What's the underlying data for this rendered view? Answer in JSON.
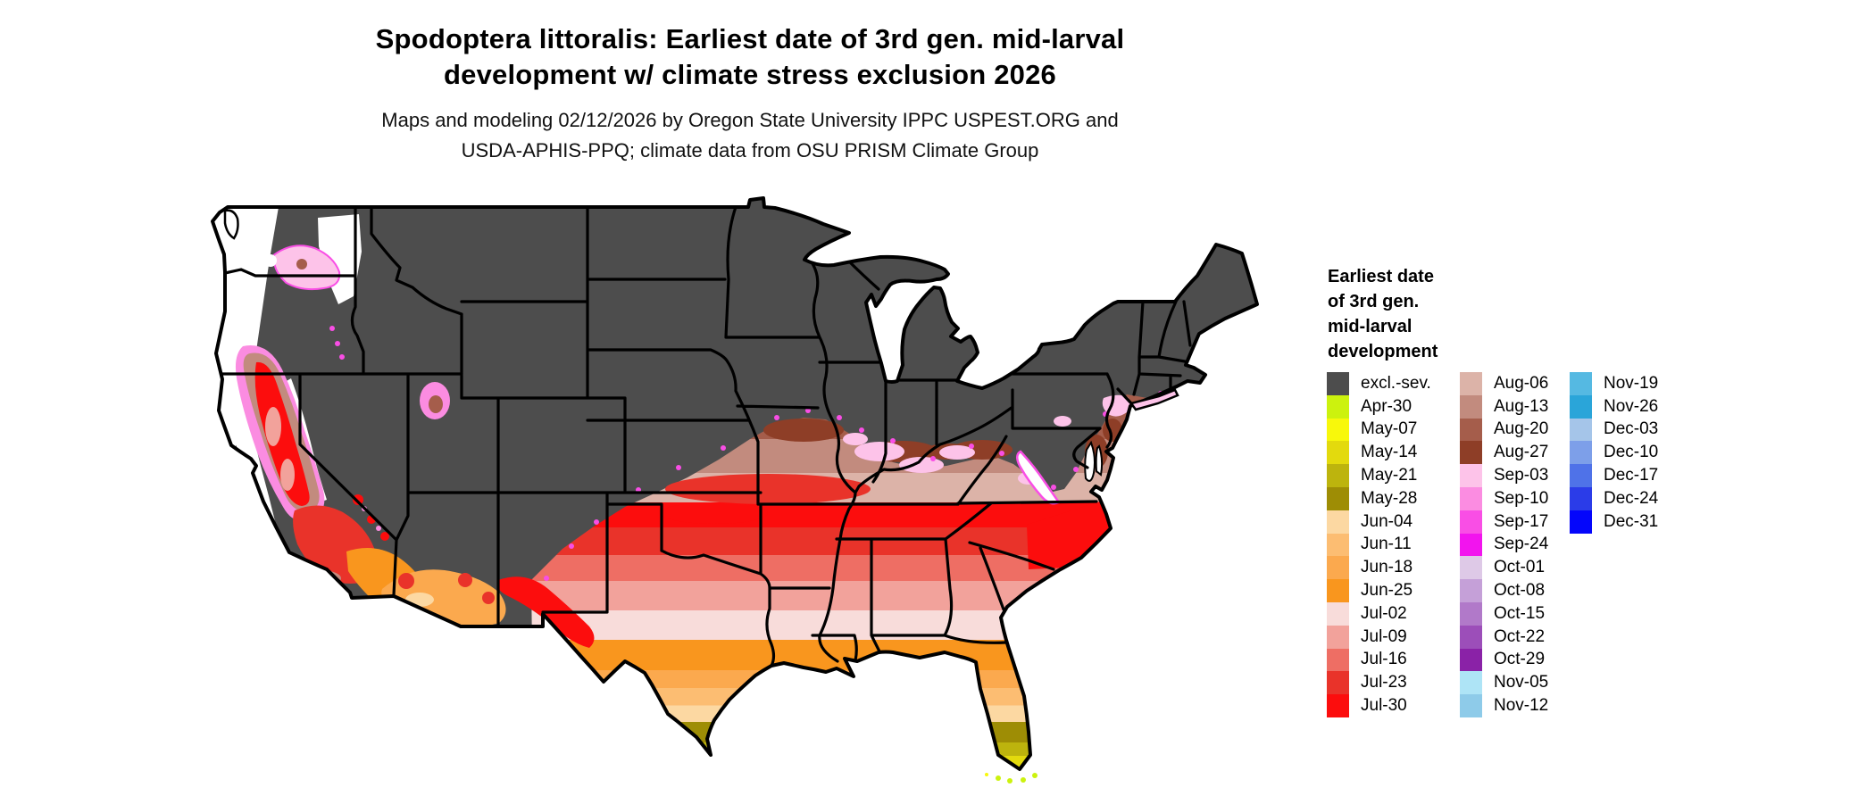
{
  "title": {
    "line1": "Spodoptera littoralis: Earliest date of 3rd gen. mid-larval",
    "line2": "development w/ climate stress exclusion 2026"
  },
  "subtitle": {
    "line1": "Maps and modeling 02/12/2026 by Oregon State University IPPC USPEST.ORG and",
    "line2": "USDA-APHIS-PPQ; climate data from OSU PRISM Climate Group"
  },
  "legend": {
    "title_lines": [
      "Earliest date",
      "of 3rd gen.",
      "mid-larval",
      "development"
    ],
    "columns": [
      15,
      15,
      7
    ],
    "entries": [
      {
        "label": "excl.-sev.",
        "color": "#4d4d4d"
      },
      {
        "label": "Apr-30",
        "color": "#ccf20e"
      },
      {
        "label": "May-07",
        "color": "#f8f80b"
      },
      {
        "label": "May-14",
        "color": "#e3da0d"
      },
      {
        "label": "May-21",
        "color": "#bdb40d"
      },
      {
        "label": "May-28",
        "color": "#9e8d05"
      },
      {
        "label": "Jun-04",
        "color": "#fcd8a2"
      },
      {
        "label": "Jun-11",
        "color": "#fcbd72"
      },
      {
        "label": "Jun-18",
        "color": "#fba94e"
      },
      {
        "label": "Jun-25",
        "color": "#f9961e"
      },
      {
        "label": "Jul-02",
        "color": "#f8dcda"
      },
      {
        "label": "Jul-09",
        "color": "#f2a29b"
      },
      {
        "label": "Jul-16",
        "color": "#ee6e64"
      },
      {
        "label": "Jul-23",
        "color": "#e9332a"
      },
      {
        "label": "Jul-30",
        "color": "#fc0d0d"
      },
      {
        "label": "Aug-06",
        "color": "#dcb3a8"
      },
      {
        "label": "Aug-13",
        "color": "#c28b7e"
      },
      {
        "label": "Aug-20",
        "color": "#a55d4b"
      },
      {
        "label": "Aug-27",
        "color": "#8e3e27"
      },
      {
        "label": "Sep-03",
        "color": "#fdc3e9"
      },
      {
        "label": "Sep-10",
        "color": "#fb8ce1"
      },
      {
        "label": "Sep-17",
        "color": "#f94ee5"
      },
      {
        "label": "Sep-24",
        "color": "#f214ee"
      },
      {
        "label": "Oct-01",
        "color": "#dec9e7"
      },
      {
        "label": "Oct-08",
        "color": "#c5a0d8"
      },
      {
        "label": "Oct-15",
        "color": "#b179c9"
      },
      {
        "label": "Oct-22",
        "color": "#9c4eb9"
      },
      {
        "label": "Oct-29",
        "color": "#8a22a7"
      },
      {
        "label": "Nov-05",
        "color": "#aee4f6"
      },
      {
        "label": "Nov-12",
        "color": "#8ecbe9"
      },
      {
        "label": "Nov-19",
        "color": "#55b9e2"
      },
      {
        "label": "Nov-26",
        "color": "#2aa5d9"
      },
      {
        "label": "Dec-03",
        "color": "#a5c5e9"
      },
      {
        "label": "Dec-10",
        "color": "#7d9fe9"
      },
      {
        "label": "Dec-17",
        "color": "#4f72e8"
      },
      {
        "label": "Dec-24",
        "color": "#2b3ce8"
      },
      {
        "label": "Dec-31",
        "color": "#0406fb"
      }
    ]
  },
  "map": {
    "area_label": "Contiguous United States",
    "exclusion_color": "#4d4d4d",
    "no_data_color": "#ffffff",
    "border_color": "#000000",
    "gradient_bands": [
      {
        "label": "Aug-20",
        "end": 0.122
      },
      {
        "label": "Aug-13",
        "end": 0.208
      },
      {
        "label": "Aug-06",
        "end": 0.283
      },
      {
        "label": "Jul-30",
        "end": 0.346
      },
      {
        "label": "Jul-23",
        "end": 0.416
      },
      {
        "label": "Jul-16",
        "end": 0.482
      },
      {
        "label": "Jul-09",
        "end": 0.557
      },
      {
        "label": "Jul-02",
        "end": 0.631
      },
      {
        "label": "Jun-25",
        "end": 0.708
      },
      {
        "label": "Jun-18",
        "end": 0.753
      },
      {
        "label": "Jun-11",
        "end": 0.798
      },
      {
        "label": "Jun-04",
        "end": 0.839
      },
      {
        "label": "May-28",
        "end": 0.891
      },
      {
        "label": "May-21",
        "end": 0.925
      },
      {
        "label": "May-14",
        "end": 0.95
      },
      {
        "label": "May-07",
        "end": 0.973
      },
      {
        "label": "Apr-30",
        "end": 1.0
      }
    ]
  }
}
